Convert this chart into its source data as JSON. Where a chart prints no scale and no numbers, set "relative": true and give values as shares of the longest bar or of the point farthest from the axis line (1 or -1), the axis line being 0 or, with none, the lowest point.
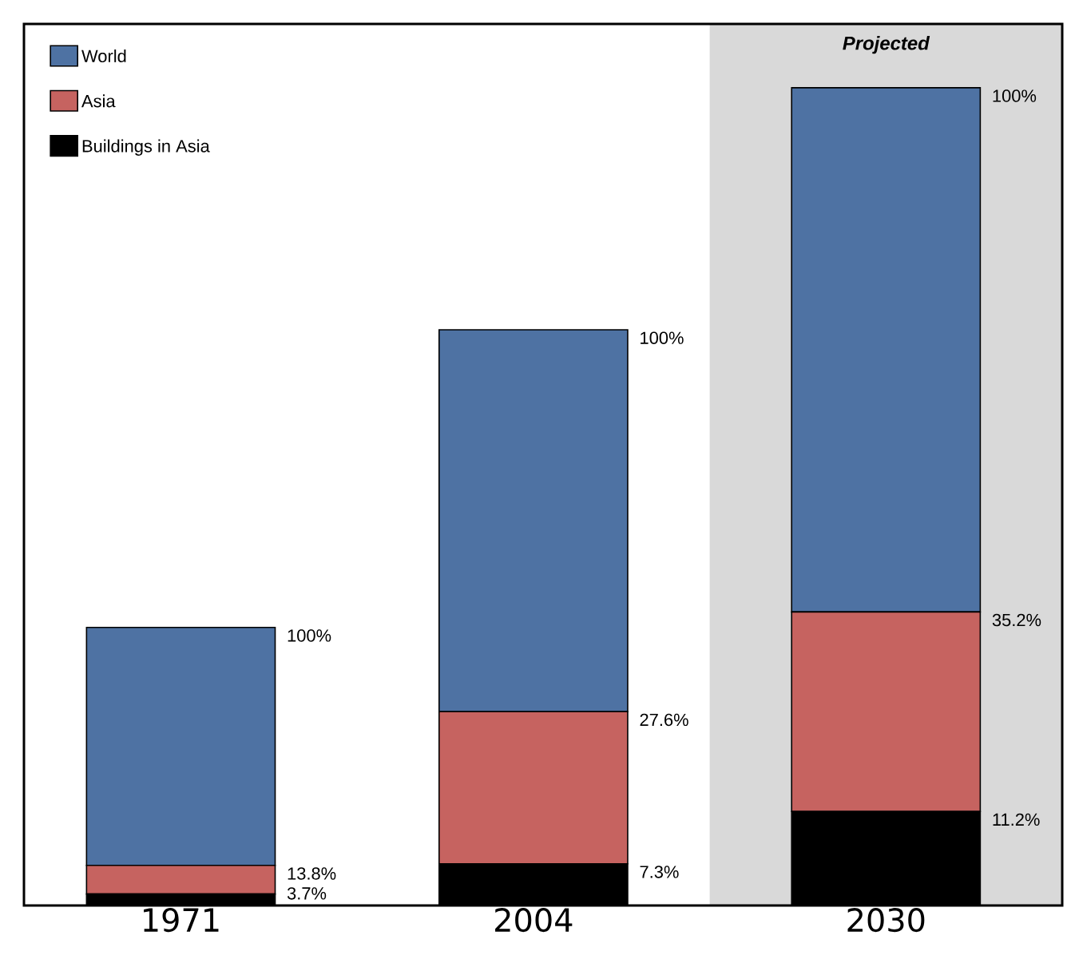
{
  "chart_data": {
    "type": "bar",
    "stacked": true,
    "relative": true,
    "categories": [
      "1971",
      "2004",
      "2030"
    ],
    "series": [
      {
        "name": "Buildings in Asia",
        "color": "#000000",
        "values": [
          0.014,
          0.051,
          0.115
        ]
      },
      {
        "name": "Asia",
        "color": "#c66360",
        "values": [
          0.035,
          0.186,
          0.244
        ]
      },
      {
        "name": "World",
        "color": "#4e72a3",
        "values": [
          0.291,
          0.467,
          0.641
        ]
      }
    ],
    "annotations": [
      "3.7%",
      "13.8%",
      "100%",
      "7.3%",
      "27.6%",
      "100%",
      "11.2%",
      "35.2%",
      "100%"
    ],
    "bands": [
      {
        "axis": "x",
        "from": "2030",
        "to": "2030",
        "label": "Projected",
        "color": "#d9d9d9"
      }
    ],
    "legend": "top left"
  }
}
